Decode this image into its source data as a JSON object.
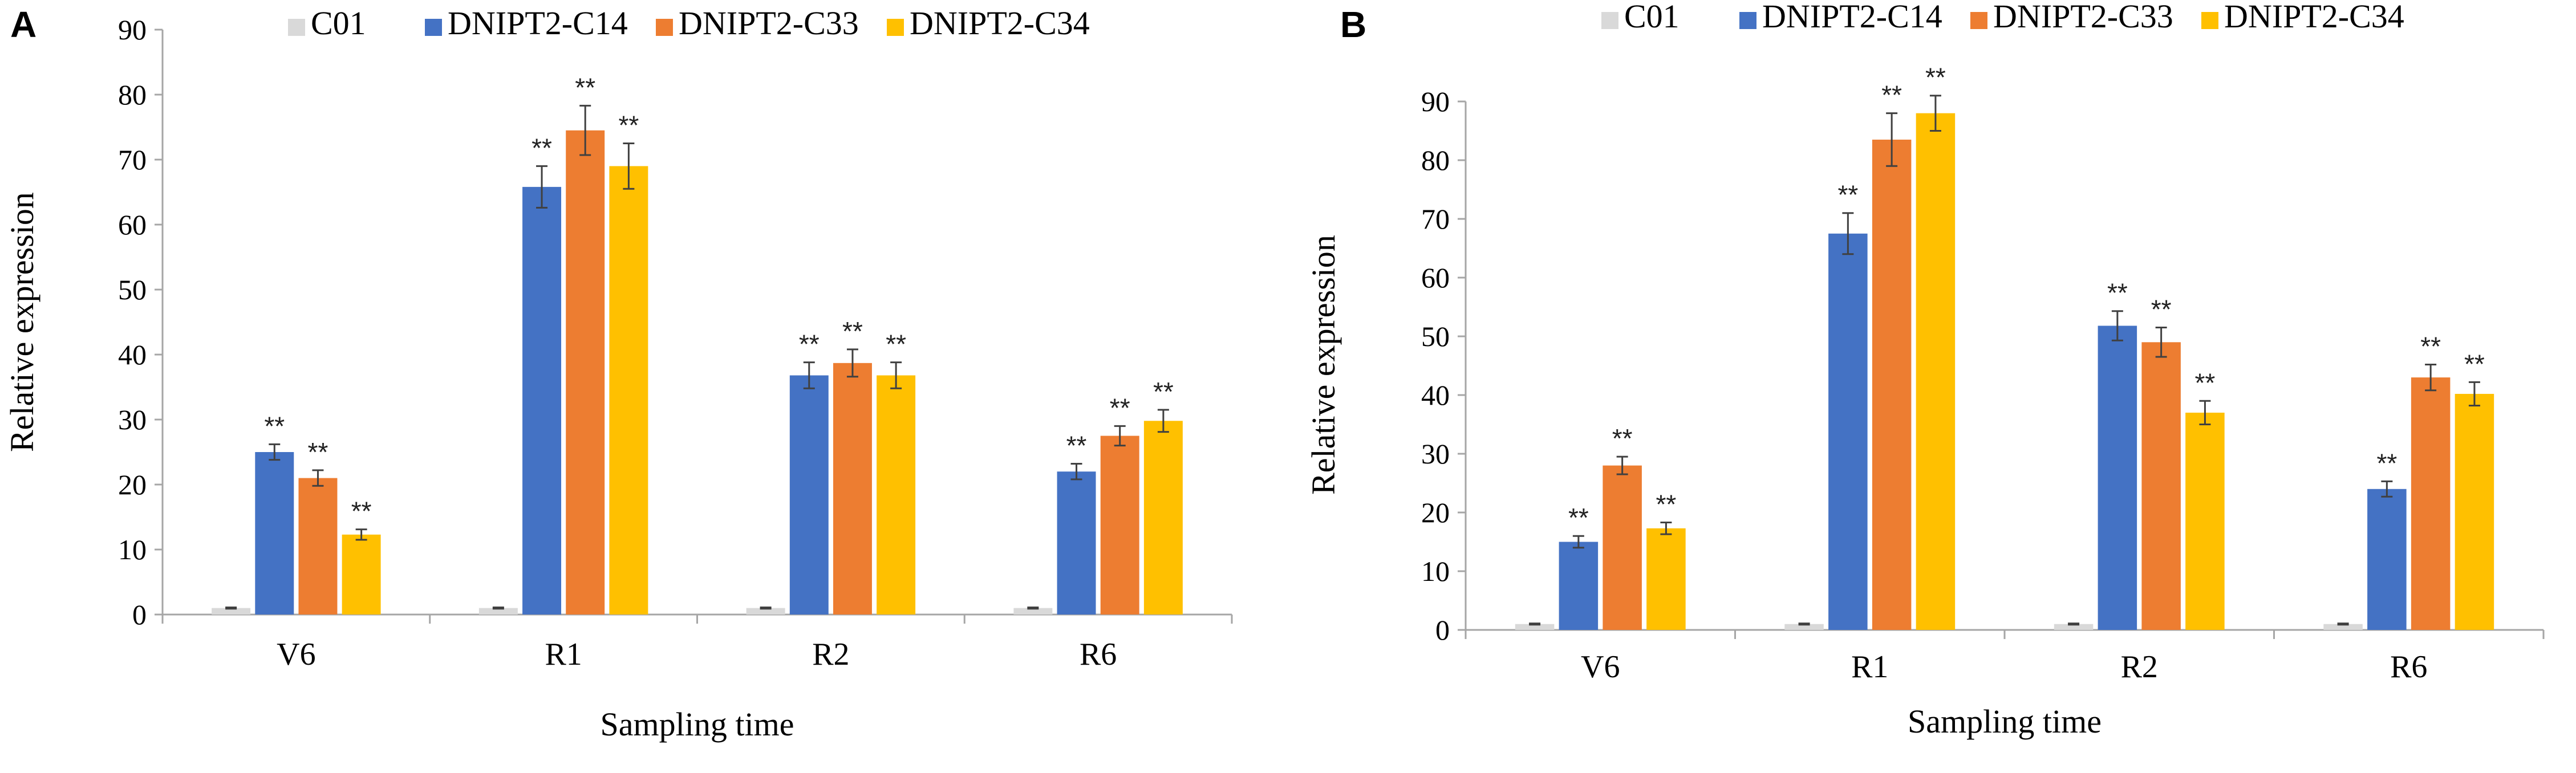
{
  "colors": {
    "C01": "#d9d9d9",
    "DNIPT2-C14": "#4472c4",
    "DNIPT2-C33": "#ed7d31",
    "DNIPT2-C34": "#ffc000",
    "axis": "#a6a6a6",
    "errorbar": "#404040"
  },
  "chart_data": [
    {
      "panel": "A",
      "type": "bar",
      "xlabel": "Sampling time",
      "ylabel": "Relative expression",
      "ylim": [
        0,
        90
      ],
      "yticks": [
        0,
        10,
        20,
        30,
        40,
        50,
        60,
        70,
        80,
        90
      ],
      "legend_position": "top",
      "categories": [
        "V6",
        "R1",
        "R2",
        "R6"
      ],
      "series": [
        {
          "name": "C01",
          "values": [
            1,
            1,
            1,
            1
          ],
          "errors": [
            0.1,
            0.1,
            0.1,
            0.1
          ],
          "sig": [
            "",
            "",
            "",
            ""
          ]
        },
        {
          "name": "DNIPT2-C14",
          "values": [
            25,
            65.8,
            36.8,
            22
          ],
          "errors": [
            1.2,
            3.2,
            2,
            1.2
          ],
          "sig": [
            "**",
            "**",
            "**",
            "**"
          ]
        },
        {
          "name": "DNIPT2-C33",
          "values": [
            21,
            74.5,
            38.7,
            27.5
          ],
          "errors": [
            1.2,
            3.8,
            2.1,
            1.5
          ],
          "sig": [
            "**",
            "**",
            "**",
            "**"
          ]
        },
        {
          "name": "DNIPT2-C34",
          "values": [
            12.3,
            69,
            36.8,
            29.8
          ],
          "errors": [
            0.8,
            3.5,
            2,
            1.7
          ],
          "sig": [
            "**",
            "**",
            "**",
            "**"
          ]
        }
      ]
    },
    {
      "panel": "B",
      "type": "bar",
      "xlabel": "Sampling time",
      "ylabel": "Relative expression",
      "ylim": [
        0,
        90
      ],
      "yticks": [
        0,
        10,
        20,
        30,
        40,
        50,
        60,
        70,
        80,
        90
      ],
      "legend_position": "top",
      "categories": [
        "V6",
        "R1",
        "R2",
        "R6"
      ],
      "series": [
        {
          "name": "C01",
          "values": [
            1,
            1,
            1,
            1
          ],
          "errors": [
            0.1,
            0.1,
            0.1,
            0.1
          ],
          "sig": [
            "",
            "",
            "",
            ""
          ]
        },
        {
          "name": "DNIPT2-C14",
          "values": [
            15,
            67.5,
            51.8,
            24
          ],
          "errors": [
            1,
            3.5,
            2.5,
            1.3
          ],
          "sig": [
            "**",
            "**",
            "**",
            "**"
          ]
        },
        {
          "name": "DNIPT2-C33",
          "values": [
            28,
            83.5,
            49,
            43
          ],
          "errors": [
            1.5,
            4.5,
            2.5,
            2.2
          ],
          "sig": [
            "**",
            "**",
            "**",
            "**"
          ]
        },
        {
          "name": "DNIPT2-C34",
          "values": [
            17.3,
            88,
            37,
            40.2
          ],
          "errors": [
            1,
            3,
            2,
            2
          ],
          "sig": [
            "**",
            "**",
            "**",
            "**"
          ]
        }
      ]
    }
  ]
}
